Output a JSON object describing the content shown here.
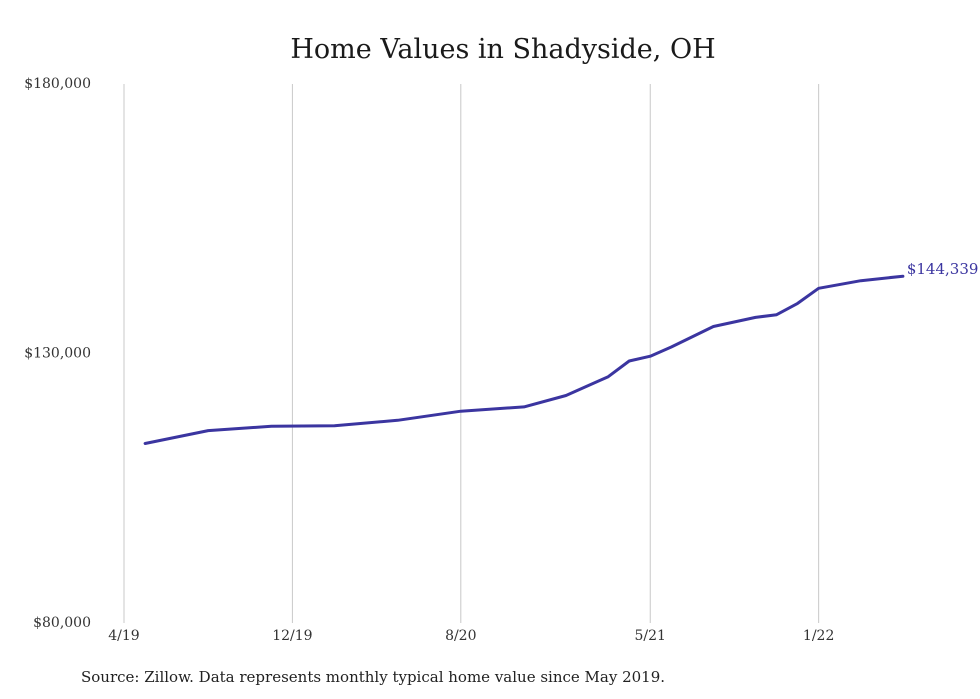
{
  "chart_data": {
    "type": "line",
    "title": "Home Values in Shadyside, OH",
    "xlabel": "",
    "ylabel": "",
    "ylim": [
      80000,
      180000
    ],
    "y_ticks": [
      "$180,000",
      "$130,000",
      "$80,000"
    ],
    "y_tick_values": [
      180000,
      130000,
      80000
    ],
    "x_ticks": [
      "4/19",
      "12/19",
      "8/20",
      "5/21",
      "1/22"
    ],
    "x_tick_months": [
      "2019-04",
      "2019-12",
      "2020-08",
      "2021-05",
      "2022-01"
    ],
    "grid": true,
    "line_color": "#3b35a0",
    "end_label": "$144,339",
    "x": [
      "2019-05",
      "2019-08",
      "2019-11",
      "2020-02",
      "2020-05",
      "2020-08",
      "2020-11",
      "2021-01",
      "2021-03",
      "2021-04",
      "2021-05",
      "2021-06",
      "2021-08",
      "2021-10",
      "2021-11",
      "2021-12",
      "2022-01",
      "2022-03",
      "2022-05"
    ],
    "values": [
      113300,
      115700,
      116500,
      116600,
      117600,
      119300,
      120100,
      122200,
      125700,
      128600,
      129500,
      131200,
      135000,
      136700,
      137200,
      139300,
      142100,
      143500,
      144339
    ]
  },
  "footer": {
    "source": "Source: Zillow. Data represents monthly typical home value since May 2019."
  }
}
